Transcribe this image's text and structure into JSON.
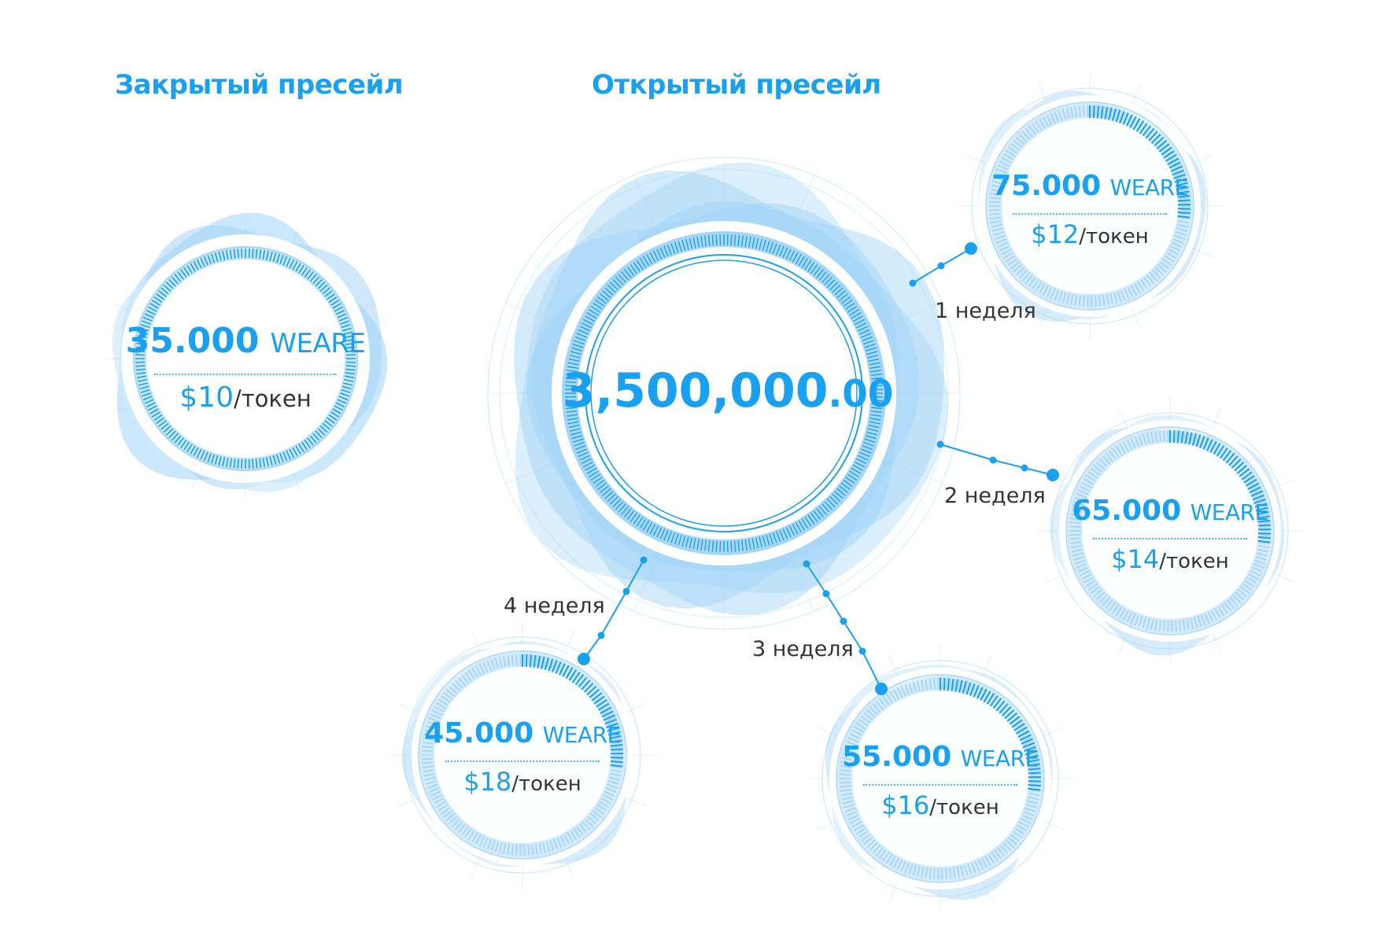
{
  "colors": {
    "accent": "#1aa0f0",
    "accent_light": "#cfe9fb",
    "accent_mid": "#9fd3f7",
    "text_dark": "#333333"
  },
  "headings": {
    "closed_presale": "Закрытый пресейл",
    "open_presale": "Открытый пресейл"
  },
  "main_circle": {
    "integer": "3,500,000",
    "decimals": ".00"
  },
  "closed": {
    "amount": "35.000",
    "unit": "WEARE",
    "price": "$10",
    "price_unit": "/токен"
  },
  "weeks": [
    {
      "label": "1 неделя",
      "amount": "75.000",
      "unit": "WEARE",
      "price": "$12",
      "price_unit": "/токен"
    },
    {
      "label": "2 неделя",
      "amount": "65.000",
      "unit": "WEARE",
      "price": "$14",
      "price_unit": "/токен"
    },
    {
      "label": "3 неделя",
      "amount": "55.000",
      "unit": "WEARE",
      "price": "$16",
      "price_unit": "/токен"
    },
    {
      "label": "4 неделя",
      "amount": "45.000",
      "unit": "WEARE",
      "price": "$18",
      "price_unit": "/токен"
    }
  ]
}
